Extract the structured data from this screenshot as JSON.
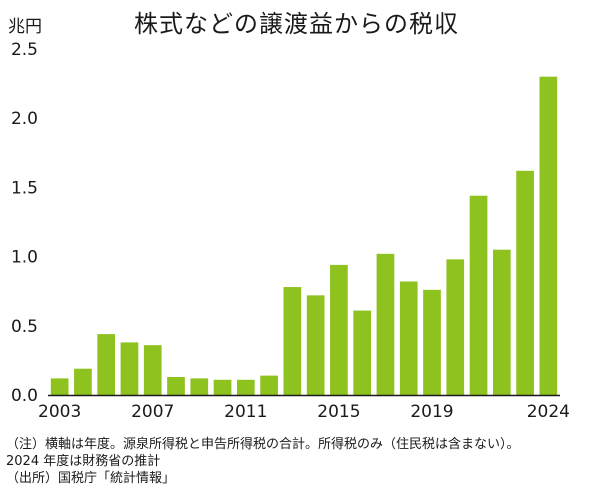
{
  "chart_data": {
    "type": "bar",
    "title": "株式などの譲渡益からの税収",
    "ylabel": "兆円",
    "xlabel": "",
    "categories": [
      "2003",
      "2004",
      "2005",
      "2006",
      "2007",
      "2008",
      "2009",
      "2010",
      "2011",
      "2012",
      "2013",
      "2014",
      "2015",
      "2016",
      "2017",
      "2018",
      "2019",
      "2020",
      "2021",
      "2022",
      "2023",
      "2024"
    ],
    "values": [
      0.12,
      0.19,
      0.44,
      0.38,
      0.36,
      0.13,
      0.12,
      0.11,
      0.11,
      0.14,
      0.78,
      0.72,
      0.94,
      0.61,
      1.02,
      0.82,
      0.76,
      0.98,
      1.44,
      1.05,
      1.62,
      2.3
    ],
    "ylim": [
      0,
      2.5
    ],
    "yticks": [
      "0.0",
      "0.5",
      "1.0",
      "1.5",
      "2.0",
      "2.5"
    ],
    "xticks": [
      "2003",
      "2007",
      "2011",
      "2015",
      "2019",
      "2024"
    ],
    "grid": false,
    "bar_color": "#8dc21f"
  },
  "notes": [
    "（注）横軸は年度。源泉所得税と申告所得税の合計。所得税のみ（住民税は含まない）。",
    "2024 年度は財務省の推計",
    "（出所）国税庁「統計情報」"
  ]
}
